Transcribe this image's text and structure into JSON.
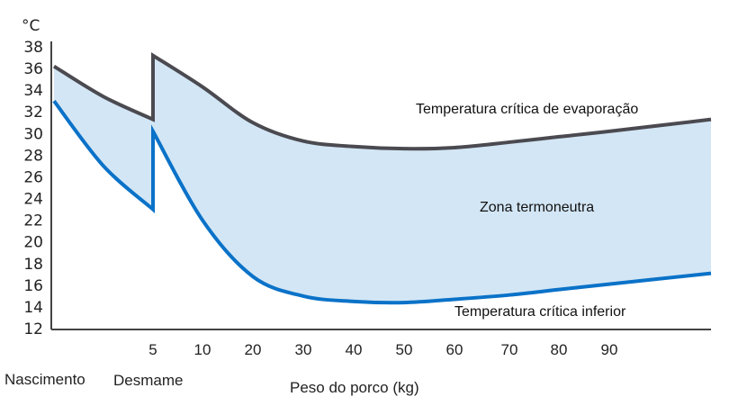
{
  "chart_data": {
    "type": "area",
    "y_unit": "°C",
    "xlabel": "Peso do porco (kg)",
    "x_category_labels": {
      "birth": "Nascimento",
      "weaning": "Desmame"
    },
    "ylim": [
      12,
      38
    ],
    "yticks": [
      12,
      14,
      16,
      18,
      20,
      22,
      24,
      26,
      28,
      30,
      32,
      34,
      36,
      38
    ],
    "xticks": [
      5,
      10,
      20,
      30,
      40,
      50,
      60,
      70,
      80,
      90
    ],
    "grid": false,
    "colors": {
      "upper": "#4a4a50",
      "lower": "#0a72c8",
      "band": "#d3e6f5"
    },
    "band_label": "Zona termoneutra",
    "series": [
      {
        "name": "Temperatura crítica de evaporação",
        "segments": [
          {
            "x": [
              0,
              2.5,
              5
            ],
            "y": [
              36.2,
              33.4,
              31.3
            ]
          },
          {
            "x": [
              5,
              10,
              20,
              30,
              40,
              50,
              60,
              70,
              80,
              90,
              110
            ],
            "y": [
              37.2,
              34.3,
              31.0,
              29.3,
              28.8,
              28.6,
              28.7,
              29.2,
              29.7,
              30.2,
              31.3
            ]
          }
        ]
      },
      {
        "name": "Temperatura crítica inferior",
        "segments": [
          {
            "x": [
              0,
              2.5,
              5
            ],
            "y": [
              33.0,
              27.0,
              23.0
            ]
          },
          {
            "x": [
              5,
              10,
              20,
              30,
              40,
              50,
              60,
              70,
              80,
              90,
              110
            ],
            "y": [
              30.2,
              22.0,
              16.8,
              15.0,
              14.5,
              14.4,
              14.7,
              15.1,
              15.6,
              16.1,
              17.1
            ]
          }
        ]
      }
    ]
  }
}
